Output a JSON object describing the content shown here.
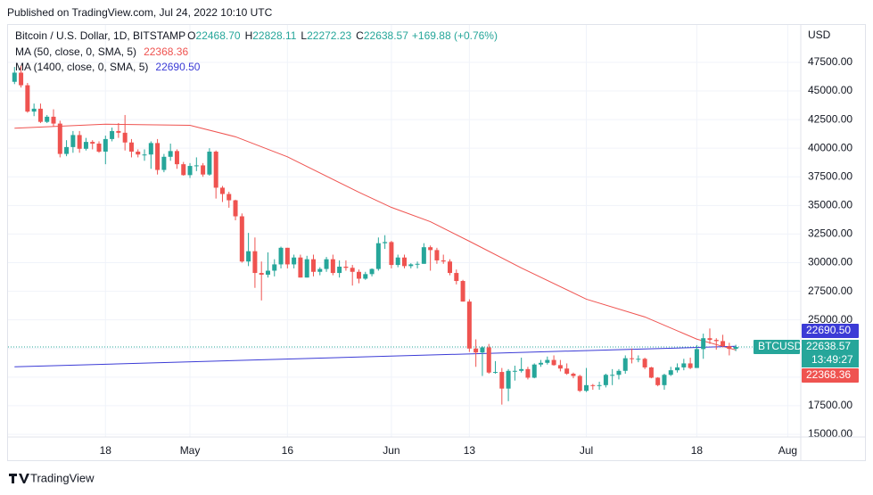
{
  "header": {
    "published": "Published on TradingView.com, Jul 24, 2022 10:10 UTC",
    "logo": "TradingView"
  },
  "chart_data": {
    "type": "candlestick",
    "title": "Bitcoin / U.S. Dollar, 1D, BITSTAMP",
    "ohlc_legend": [
      {
        "label": "O",
        "text": "22468.70"
      },
      {
        "label": "H",
        "text": "22828.11"
      },
      {
        "label": "L",
        "text": "22272.23"
      },
      {
        "label": "C",
        "text": "22638.57"
      }
    ],
    "change": "+169.88 (+0.76%)",
    "currency": "USD",
    "symbol": "BTCUSD",
    "last_price_label": "22638.57",
    "countdown": "13:49:27",
    "up_color": "#26a69a",
    "down_color": "#ef5350",
    "grid": true,
    "x": [
      "04-04",
      "04-05",
      "04-06",
      "04-07",
      "04-08",
      "04-09",
      "04-10",
      "04-11",
      "04-12",
      "04-13",
      "04-14",
      "04-15",
      "04-16",
      "04-17",
      "04-18",
      "04-19",
      "04-20",
      "04-21",
      "04-22",
      "04-23",
      "04-24",
      "04-25",
      "04-26",
      "04-27",
      "04-28",
      "04-29",
      "04-30",
      "05-01",
      "05-02",
      "05-03",
      "05-04",
      "05-05",
      "05-06",
      "05-07",
      "05-08",
      "05-09",
      "05-10",
      "05-11",
      "05-12",
      "05-13",
      "05-14",
      "05-15",
      "05-16",
      "05-17",
      "05-18",
      "05-19",
      "05-20",
      "05-21",
      "05-22",
      "05-23",
      "05-24",
      "05-25",
      "05-26",
      "05-27",
      "05-28",
      "05-29",
      "05-30",
      "05-31",
      "06-01",
      "06-02",
      "06-03",
      "06-04",
      "06-05",
      "06-06",
      "06-07",
      "06-08",
      "06-09",
      "06-10",
      "06-11",
      "06-12",
      "06-13",
      "06-14",
      "06-15",
      "06-16",
      "06-17",
      "06-18",
      "06-19",
      "06-20",
      "06-21",
      "06-22",
      "06-23",
      "06-24",
      "06-25",
      "06-26",
      "06-27",
      "06-28",
      "06-29",
      "06-30",
      "07-01",
      "07-02",
      "07-03",
      "07-04",
      "07-05",
      "07-06",
      "07-07",
      "07-08",
      "07-09",
      "07-10",
      "07-11",
      "07-12",
      "07-13",
      "07-14",
      "07-15",
      "07-16",
      "07-17",
      "07-18",
      "07-19",
      "07-20",
      "07-21",
      "07-22",
      "07-23",
      "07-24"
    ],
    "open": [
      45800,
      46600,
      45500,
      43200,
      43450,
      42300,
      42750,
      42150,
      39500,
      40100,
      41150,
      39950,
      40550,
      40400,
      39700,
      40800,
      41500,
      41350,
      40500,
      39700,
      39450,
      39450,
      40450,
      38100,
      39250,
      39750,
      38600,
      37650,
      38450,
      38500,
      37700,
      39700,
      36550,
      36000,
      35450,
      34050,
      30100,
      31000,
      29100,
      28950,
      29300,
      29850,
      31300,
      29850,
      30450,
      28700,
      30300,
      29200,
      29450,
      30300,
      29100,
      29650,
      29550,
      29200,
      28600,
      29000,
      29450,
      31700,
      31800,
      29800,
      30450,
      29700,
      29850,
      29900,
      31350,
      31100,
      30200,
      30100,
      29100,
      28400,
      26600,
      22500,
      22150,
      22600,
      20400,
      20450,
      19000,
      20550,
      20550,
      20700,
      19950,
      21100,
      21250,
      21500,
      21050,
      20750,
      20300,
      20100,
      18800,
      19300,
      19250,
      19300,
      20200,
      20200,
      20550,
      21650,
      21600,
      21600,
      20850,
      19950,
      19300,
      20200,
      20600,
      20850,
      21200,
      20800,
      22450,
      23400,
      23250,
      23150,
      22700,
      22468.7
    ],
    "high": [
      47100,
      47200,
      45700,
      43900,
      43900,
      42900,
      43400,
      42400,
      40700,
      41500,
      41500,
      40900,
      40700,
      40600,
      41100,
      41800,
      42200,
      42900,
      40800,
      39900,
      39900,
      40600,
      40800,
      39500,
      40400,
      39900,
      38800,
      38700,
      39200,
      38700,
      40000,
      39800,
      36700,
      36200,
      35500,
      34300,
      32600,
      32200,
      30100,
      30900,
      30300,
      31400,
      31300,
      30700,
      30700,
      30600,
      30700,
      29600,
      30500,
      30700,
      30200,
      30200,
      29800,
      29400,
      29200,
      29500,
      32200,
      32400,
      31900,
      30700,
      30700,
      29950,
      30100,
      31700,
      31500,
      31300,
      30700,
      30300,
      29400,
      28500,
      26800,
      23300,
      22700,
      22900,
      21400,
      20800,
      20700,
      21000,
      21700,
      20900,
      21200,
      21500,
      21800,
      21900,
      21500,
      21200,
      20400,
      20200,
      20800,
      19400,
      19600,
      20300,
      20700,
      20700,
      21900,
      22500,
      21900,
      21700,
      20900,
      20000,
      20300,
      20900,
      21200,
      21600,
      21700,
      22800,
      23800,
      24250,
      23400,
      23700,
      23000,
      22828.11
    ],
    "low": [
      45600,
      45300,
      43100,
      42800,
      42200,
      42200,
      41900,
      39200,
      39300,
      39600,
      39600,
      39800,
      39900,
      39600,
      38600,
      40600,
      40900,
      39800,
      39200,
      39200,
      38900,
      38200,
      37700,
      37900,
      38900,
      38200,
      37600,
      37400,
      38000,
      37500,
      37600,
      35600,
      35300,
      34800,
      33700,
      30000,
      29700,
      27800,
      26700,
      28700,
      28800,
      29500,
      29500,
      29500,
      28700,
      28700,
      28800,
      28900,
      29200,
      28900,
      28700,
      29300,
      28000,
      28200,
      28500,
      28800,
      29300,
      31200,
      29500,
      29600,
      29500,
      29500,
      29500,
      29900,
      29300,
      29900,
      29900,
      28900,
      28100,
      26600,
      22200,
      20900,
      20100,
      20300,
      20300,
      17600,
      17900,
      19700,
      20400,
      19800,
      19900,
      20900,
      21100,
      21000,
      20500,
      20200,
      19900,
      18700,
      18700,
      18900,
      18900,
      19100,
      19300,
      19800,
      20300,
      21200,
      21300,
      20700,
      19900,
      19200,
      18900,
      20100,
      20400,
      20600,
      20700,
      20800,
      21600,
      22900,
      22400,
      22600,
      21900,
      22272.23
    ],
    "close": [
      46600,
      45500,
      43200,
      43450,
      42300,
      42750,
      42150,
      39500,
      40100,
      41150,
      39950,
      40550,
      40400,
      39700,
      40800,
      41500,
      41350,
      40500,
      39700,
      39450,
      39450,
      40450,
      38100,
      39250,
      39750,
      38600,
      37650,
      38450,
      38500,
      37700,
      39700,
      36550,
      36000,
      35450,
      34050,
      30100,
      31000,
      29100,
      28950,
      29300,
      29850,
      31300,
      29850,
      30450,
      28700,
      30300,
      29200,
      29450,
      30300,
      29100,
      29650,
      29550,
      29200,
      28600,
      29000,
      29450,
      31700,
      31800,
      29800,
      30450,
      29700,
      29850,
      29900,
      31350,
      31100,
      30200,
      30100,
      29100,
      28400,
      26600,
      22500,
      22150,
      22600,
      20400,
      20450,
      19000,
      20550,
      20550,
      20700,
      19950,
      21100,
      21250,
      21500,
      21050,
      20750,
      20300,
      20100,
      18800,
      19300,
      19250,
      19300,
      20200,
      20200,
      20550,
      21650,
      21600,
      21600,
      20850,
      19950,
      19300,
      20200,
      20600,
      20850,
      21200,
      20800,
      22450,
      23400,
      23250,
      23150,
      22700,
      22468.7,
      22638.57
    ],
    "ma": [
      {
        "name": "MA (50, close, 0, SMA, 5)",
        "color": "#ef5350",
        "last_value_label": "22368.36",
        "x": [
          "04-04",
          "04-18",
          "05-01",
          "05-08",
          "05-16",
          "05-27",
          "06-01",
          "06-07",
          "06-13",
          "06-21",
          "07-01",
          "07-10",
          "07-18",
          "07-24"
        ],
        "values": [
          41750,
          42100,
          42000,
          41000,
          39250,
          36150,
          34830,
          33580,
          31870,
          29540,
          26810,
          25260,
          23320,
          22368.36
        ]
      },
      {
        "name": "MA (1400, close, 0, SMA, 5)",
        "color": "#3b3bd6",
        "last_value_label": "22690.50",
        "x": [
          "04-04",
          "07-24"
        ],
        "values": [
          20900,
          22690.5
        ]
      }
    ],
    "xlim": [
      "04-03",
      "08-03"
    ],
    "xticks": [
      {
        "value": "04-18",
        "label": "18"
      },
      {
        "value": "05-01",
        "label": "May"
      },
      {
        "value": "05-16",
        "label": "16"
      },
      {
        "value": "06-01",
        "label": "Jun"
      },
      {
        "value": "06-13",
        "label": "13"
      },
      {
        "value": "07-01",
        "label": "Jul"
      },
      {
        "value": "07-18",
        "label": "18"
      },
      {
        "value": "08-01",
        "label": "Aug"
      }
    ],
    "ylim": [
      14767,
      50766
    ],
    "yticks": [
      {
        "value": 15000,
        "label": "15000.00"
      },
      {
        "value": 17500,
        "label": "17500.00"
      },
      {
        "value": 20000,
        "label": "20000.00"
      },
      {
        "value": 22500,
        "label": "22500.00"
      },
      {
        "value": 25000,
        "label": "25000.00"
      },
      {
        "value": 27500,
        "label": "27500.00"
      },
      {
        "value": 30000,
        "label": "30000.00"
      },
      {
        "value": 32500,
        "label": "32500.00"
      },
      {
        "value": 35000,
        "label": "35000.00"
      },
      {
        "value": 37500,
        "label": "37500.00"
      },
      {
        "value": 40000,
        "label": "40000.00"
      },
      {
        "value": 42500,
        "label": "42500.00"
      },
      {
        "value": 45000,
        "label": "45000.00"
      },
      {
        "value": 47500,
        "label": "47500.00"
      }
    ]
  }
}
